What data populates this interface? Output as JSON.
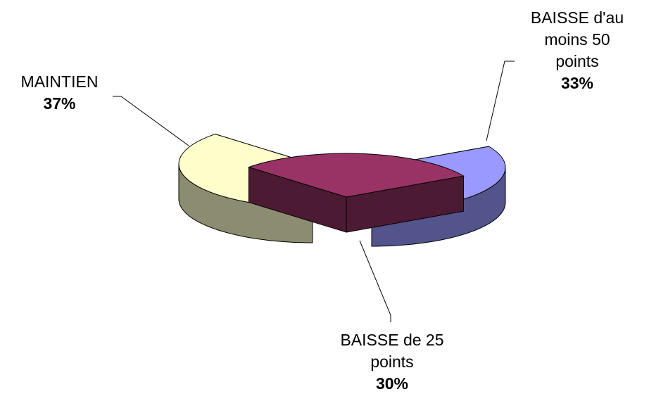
{
  "chart_data": {
    "type": "pie",
    "title": "",
    "legend": "none",
    "slices": [
      {
        "name": "MAINTIEN",
        "label_lines": [
          "MAINTIEN"
        ],
        "value": 37,
        "value_label": "37%",
        "color": "#ffffcc"
      },
      {
        "name": "BAISSE de 25 points",
        "label_lines": [
          "BAISSE de 25",
          "points"
        ],
        "value": 30,
        "value_label": "30%",
        "color": "#993366"
      },
      {
        "name": "BAISSE d'au moins 50 points",
        "label_lines": [
          "BAISSE d'au",
          "moins 50",
          "points"
        ],
        "value": 33,
        "value_label": "33%",
        "color": "#9999ff"
      }
    ]
  }
}
